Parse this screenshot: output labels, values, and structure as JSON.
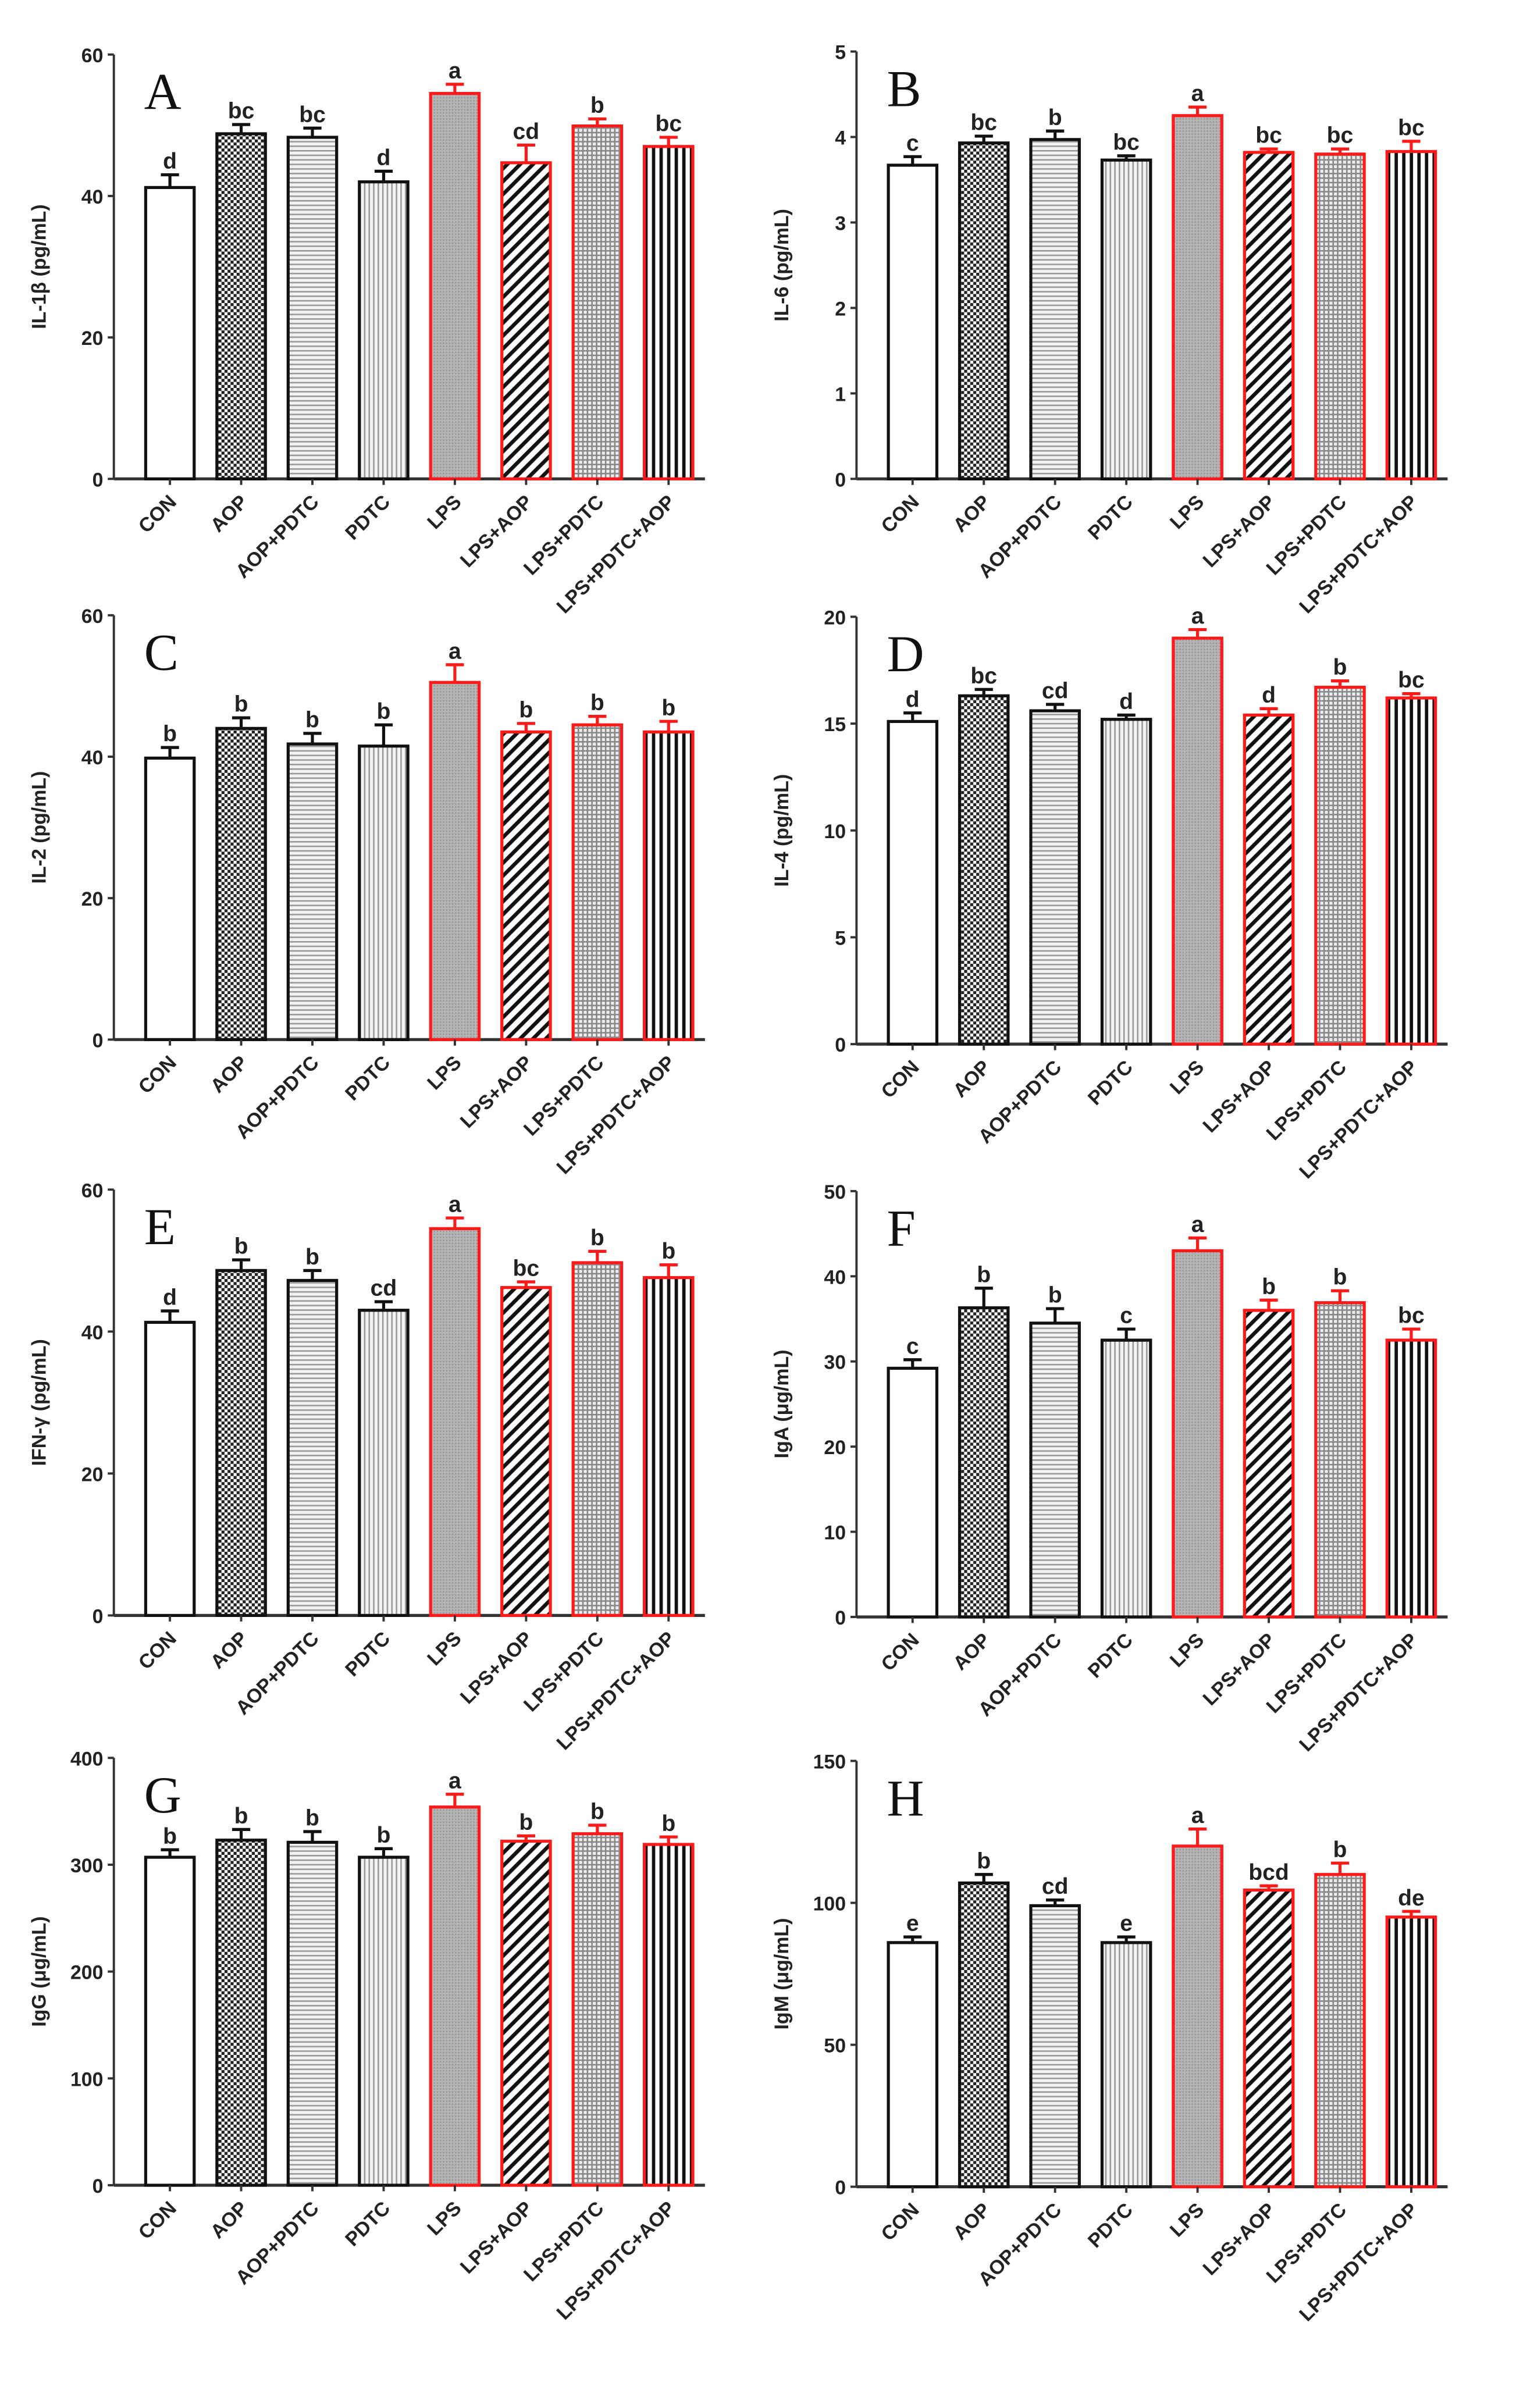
{
  "chart_data": [
    {
      "type": "bar",
      "panel": "A",
      "ylabel": "IL-1β (pg/mL)",
      "ylim": [
        0,
        60
      ],
      "ticks": [
        0,
        20,
        40,
        60
      ],
      "categories": [
        "CON",
        "AOP",
        "AOP+PDTC",
        "PDTC",
        "LPS",
        "LPS+AOP",
        "LPS+PDTC",
        "LPS+PDTC+AOP"
      ],
      "values": [
        41.2,
        48.8,
        48.3,
        42,
        54.5,
        44.7,
        49.9,
        47
      ],
      "errors": [
        1.8,
        1.3,
        1.3,
        1.5,
        1.3,
        2.5,
        1,
        1.3
      ],
      "letters": [
        "d",
        "bc",
        "bc",
        "d",
        "a",
        "cd",
        "b",
        "bc"
      ]
    },
    {
      "type": "bar",
      "panel": "B",
      "ylabel": "IL-6 (pg/mL)",
      "ylim": [
        0,
        5
      ],
      "ticks": [
        0,
        1,
        2,
        3,
        4,
        5
      ],
      "categories": [
        "CON",
        "AOP",
        "AOP+PDTC",
        "PDTC",
        "LPS",
        "LPS+AOP",
        "LPS+PDTC",
        "LPS+PDTC+AOP"
      ],
      "values": [
        3.67,
        3.93,
        3.97,
        3.73,
        4.25,
        3.82,
        3.8,
        3.83
      ],
      "errors": [
        0.1,
        0.08,
        0.1,
        0.05,
        0.1,
        0.04,
        0.06,
        0.12
      ],
      "letters": [
        "c",
        "bc",
        "b",
        "bc",
        "a",
        "bc",
        "bc",
        "bc"
      ]
    },
    {
      "type": "bar",
      "panel": "C",
      "ylabel": "IL-2 (pg/mL)",
      "ylim": [
        0,
        60
      ],
      "ticks": [
        0,
        20,
        40,
        60
      ],
      "categories": [
        "CON",
        "AOP",
        "AOP+PDTC",
        "PDTC",
        "LPS",
        "LPS+AOP",
        "LPS+PDTC",
        "LPS+PDTC+AOP"
      ],
      "values": [
        39.8,
        44,
        41.8,
        41.5,
        50.5,
        43.5,
        44.5,
        43.5
      ],
      "errors": [
        1.5,
        1.5,
        1.5,
        3,
        2.5,
        1.2,
        1.2,
        1.5
      ],
      "letters": [
        "b",
        "b",
        "b",
        "b",
        "a",
        "b",
        "b",
        "b"
      ]
    },
    {
      "type": "bar",
      "panel": "D",
      "ylabel": "IL-4 (pg/mL)",
      "ylim": [
        0,
        20
      ],
      "ticks": [
        0,
        5,
        10,
        15,
        20
      ],
      "categories": [
        "CON",
        "AOP",
        "AOP+PDTC",
        "PDTC",
        "LPS",
        "LPS+AOP",
        "LPS+PDTC",
        "LPS+PDTC+AOP"
      ],
      "values": [
        15.1,
        16.3,
        15.6,
        15.2,
        19,
        15.4,
        16.7,
        16.2
      ],
      "errors": [
        0.4,
        0.3,
        0.3,
        0.2,
        0.4,
        0.3,
        0.3,
        0.2
      ],
      "letters": [
        "d",
        "bc",
        "cd",
        "d",
        "a",
        "d",
        "b",
        "bc"
      ]
    },
    {
      "type": "bar",
      "panel": "E",
      "ylabel": "IFN-γ (pg/mL)",
      "ylim": [
        0,
        60
      ],
      "ticks": [
        0,
        20,
        40,
        60
      ],
      "categories": [
        "CON",
        "AOP",
        "AOP+PDTC",
        "PDTC",
        "LPS",
        "LPS+AOP",
        "LPS+PDTC",
        "LPS+PDTC+AOP"
      ],
      "values": [
        41.3,
        48.6,
        47.2,
        43,
        54.5,
        46.2,
        49.7,
        47.6
      ],
      "errors": [
        1.6,
        1.5,
        1.4,
        1.2,
        1.5,
        0.8,
        1.6,
        1.8
      ],
      "letters": [
        "d",
        "b",
        "b",
        "cd",
        "a",
        "bc",
        "b",
        "b"
      ]
    },
    {
      "type": "bar",
      "panel": "F",
      "ylabel": "IgA (μg/mL)",
      "ylim": [
        0,
        50
      ],
      "ticks": [
        0,
        10,
        20,
        30,
        40,
        50
      ],
      "categories": [
        "CON",
        "AOP",
        "AOP+PDTC",
        "PDTC",
        "LPS",
        "LPS+AOP",
        "LPS+PDTC",
        "LPS+PDTC+AOP"
      ],
      "values": [
        29.2,
        36.3,
        34.5,
        32.5,
        43,
        36,
        36.9,
        32.5
      ],
      "errors": [
        1,
        2.3,
        1.7,
        1.3,
        1.5,
        1.2,
        1.4,
        1.3
      ],
      "letters": [
        "c",
        "b",
        "b",
        "c",
        "a",
        "b",
        "b",
        "bc"
      ]
    },
    {
      "type": "bar",
      "panel": "G",
      "ylabel": "IgG (μg/mL)",
      "ylim": [
        0,
        400
      ],
      "ticks": [
        0,
        100,
        200,
        300,
        400
      ],
      "categories": [
        "CON",
        "AOP",
        "AOP+PDTC",
        "PDTC",
        "LPS",
        "LPS+AOP",
        "LPS+PDTC",
        "LPS+PDTC+AOP"
      ],
      "values": [
        307,
        323,
        321,
        307,
        354,
        322,
        329,
        319
      ],
      "errors": [
        7,
        10,
        10,
        8,
        12,
        5,
        8,
        7
      ],
      "letters": [
        "b",
        "b",
        "b",
        "b",
        "a",
        "b",
        "b",
        "b"
      ]
    },
    {
      "type": "bar",
      "panel": "H",
      "ylabel": "IgM (μg/mL)",
      "ylim": [
        0,
        150
      ],
      "ticks": [
        0,
        50,
        100,
        150
      ],
      "categories": [
        "CON",
        "AOP",
        "AOP+PDTC",
        "PDTC",
        "LPS",
        "LPS+AOP",
        "LPS+PDTC",
        "LPS+PDTC+AOP"
      ],
      "values": [
        86,
        107,
        99,
        86,
        120,
        104.5,
        110,
        95
      ],
      "errors": [
        2,
        3,
        2,
        2,
        6,
        1.5,
        4,
        2
      ],
      "letters": [
        "e",
        "b",
        "cd",
        "e",
        "a",
        "bcd",
        "b",
        "de"
      ]
    }
  ],
  "colors": {
    "control_stroke": "#111111",
    "lps_stroke": "#ff1a1a"
  }
}
